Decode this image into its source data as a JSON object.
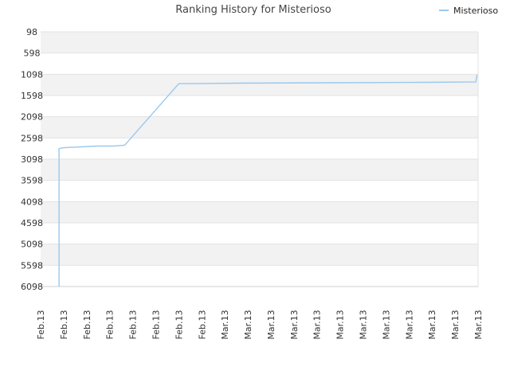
{
  "chart_data": {
    "type": "line",
    "title": "Ranking History for Misterioso",
    "xlabel": "",
    "ylabel": "",
    "y_reversed": true,
    "ylim": [
      98,
      6098
    ],
    "yticks": [
      98,
      598,
      1098,
      1598,
      2098,
      2598,
      3098,
      3598,
      4098,
      4598,
      5098,
      5598,
      6098
    ],
    "ytick_labels": [
      "98",
      "598",
      "1098",
      "1598",
      "2098",
      "2598",
      "3098",
      "3598",
      "4098",
      "4598",
      "5098",
      "5598",
      "6098"
    ],
    "xtick_labels": [
      "Feb.13",
      "Feb.13",
      "Feb.13",
      "Feb.13",
      "Feb.13",
      "Feb.13",
      "Feb.13",
      "Feb.13",
      "Mar.13",
      "Mar.13",
      "Mar.13",
      "Mar.13",
      "Mar.13",
      "Mar.13",
      "Mar.13",
      "Mar.13",
      "Mar.13",
      "Mar.13",
      "Mar.13",
      "Mar.13"
    ],
    "grid": true,
    "legend_position": "top-right",
    "series": [
      {
        "name": "Misterioso",
        "color": "#9ac8ee",
        "x": [
          0.8,
          0.8,
          1.0,
          2.5,
          2.5,
          3.2,
          3.2,
          3.65,
          6.0,
          6.5,
          8.5,
          12.5,
          16.5,
          18.9,
          18.9,
          18.95
        ],
        "y": [
          6098,
          2848,
          2828,
          2788,
          2788,
          2788,
          2788,
          2768,
          1318,
          1318,
          1308,
          1298,
          1288,
          1278,
          1278,
          1108
        ]
      }
    ]
  }
}
